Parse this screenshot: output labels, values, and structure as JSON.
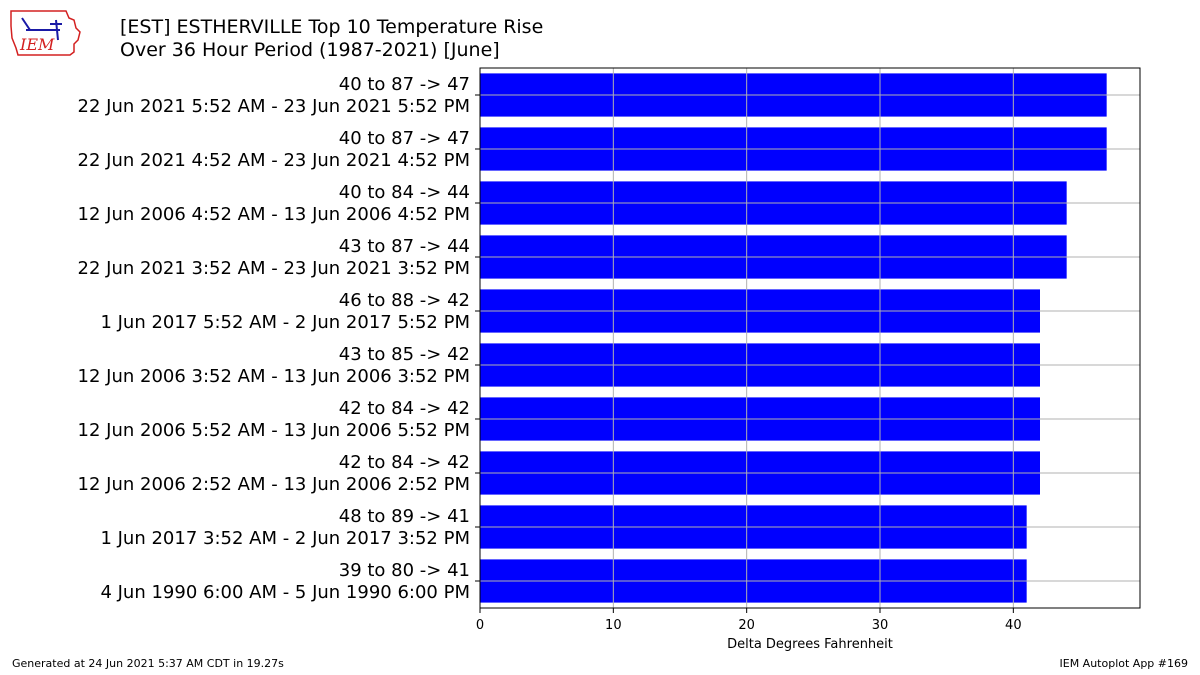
{
  "header": {
    "title_line1": "[EST] ESTHERVILLE Top 10 Temperature Rise",
    "title_line2": "Over 36 Hour Period (1987-2021) [June]",
    "logo_text": "IEM"
  },
  "footer": {
    "generated": "Generated at 24 Jun 2021 5:37 AM CDT in 19.27s",
    "app": "IEM Autoplot App #169"
  },
  "colors": {
    "bar": "#0000ff",
    "grid": "#b0b0b0",
    "logo_red": "#d32020",
    "logo_blue": "#1a1aa6"
  },
  "chart_data": {
    "type": "bar",
    "orientation": "horizontal",
    "xlabel": "Delta Degrees Fahrenheit",
    "xlim": [
      0,
      49.5
    ],
    "xticks": [
      0,
      10,
      20,
      30,
      40
    ],
    "grid": true,
    "categories": [
      {
        "line1": "40 to 87 -> 47",
        "line2": "22 Jun 2021 5:52 AM - 23 Jun 2021 5:52 PM"
      },
      {
        "line1": "40 to 87 -> 47",
        "line2": "22 Jun 2021 4:52 AM - 23 Jun 2021 4:52 PM"
      },
      {
        "line1": "40 to 84 -> 44",
        "line2": "12 Jun 2006 4:52 AM - 13 Jun 2006 4:52 PM"
      },
      {
        "line1": "43 to 87 -> 44",
        "line2": "22 Jun 2021 3:52 AM - 23 Jun 2021 3:52 PM"
      },
      {
        "line1": "46 to 88 -> 42",
        "line2": "1 Jun 2017 5:52 AM - 2 Jun 2017 5:52 PM"
      },
      {
        "line1": "43 to 85 -> 42",
        "line2": "12 Jun 2006 3:52 AM - 13 Jun 2006 3:52 PM"
      },
      {
        "line1": "42 to 84 -> 42",
        "line2": "12 Jun 2006 5:52 AM - 13 Jun 2006 5:52 PM"
      },
      {
        "line1": "42 to 84 -> 42",
        "line2": "12 Jun 2006 2:52 AM - 13 Jun 2006 2:52 PM"
      },
      {
        "line1": "48 to 89 -> 41",
        "line2": "1 Jun 2017 3:52 AM - 2 Jun 2017 3:52 PM"
      },
      {
        "line1": "39 to 80 -> 41",
        "line2": "4 Jun 1990 6:00 AM - 5 Jun 1990 6:00 PM"
      }
    ],
    "values": [
      47,
      47,
      44,
      44,
      42,
      42,
      42,
      42,
      41,
      41
    ]
  }
}
